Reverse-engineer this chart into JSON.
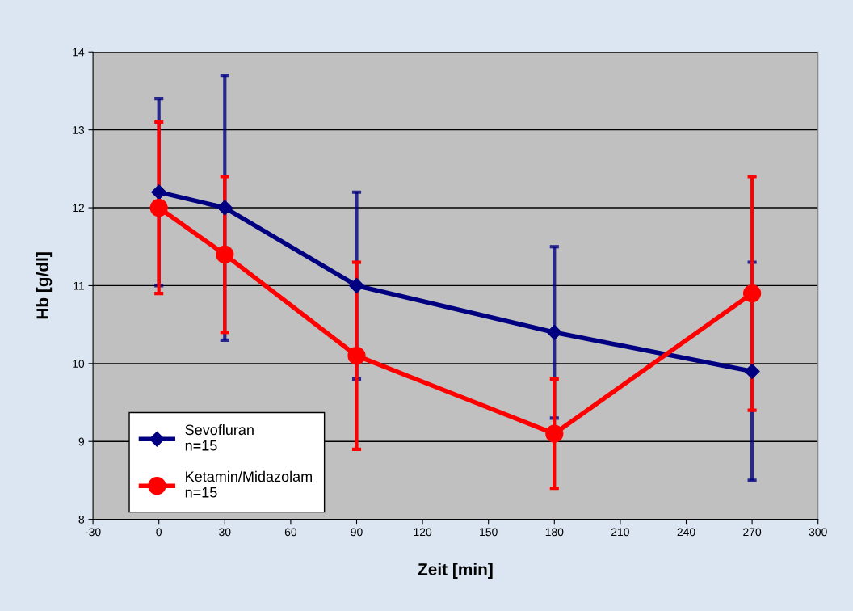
{
  "chart_data": {
    "type": "line",
    "xlabel": "Zeit [min]",
    "ylabel": "Hb [g/dl]",
    "x": [
      0,
      30,
      90,
      180,
      270
    ],
    "xlim": [
      -30,
      300
    ],
    "xticks": [
      -30,
      0,
      30,
      60,
      90,
      120,
      150,
      180,
      210,
      240,
      270,
      300
    ],
    "ylim": [
      8,
      14
    ],
    "yticks": [
      8,
      9,
      10,
      11,
      12,
      13,
      14
    ],
    "grid": "y",
    "legend": "bottom left",
    "series": [
      {
        "name": "Sevofluran\nn=15",
        "color": "#000080",
        "marker": "diamond",
        "values": [
          12.2,
          12.0,
          11.0,
          10.4,
          9.9
        ],
        "errors": [
          [
            11.0,
            13.4
          ],
          [
            10.3,
            13.7
          ],
          [
            9.8,
            12.2
          ],
          [
            9.3,
            11.5
          ],
          [
            8.5,
            11.3
          ]
        ]
      },
      {
        "name": "Ketamin/Midazolam\nn=15",
        "color": "#ff0000",
        "marker": "circle",
        "values": [
          12.0,
          11.4,
          10.1,
          9.1,
          10.9
        ],
        "errors": [
          [
            10.9,
            13.1
          ],
          [
            10.4,
            12.4
          ],
          [
            8.9,
            11.3
          ],
          [
            8.4,
            9.8
          ],
          [
            9.4,
            12.4
          ]
        ]
      }
    ]
  }
}
